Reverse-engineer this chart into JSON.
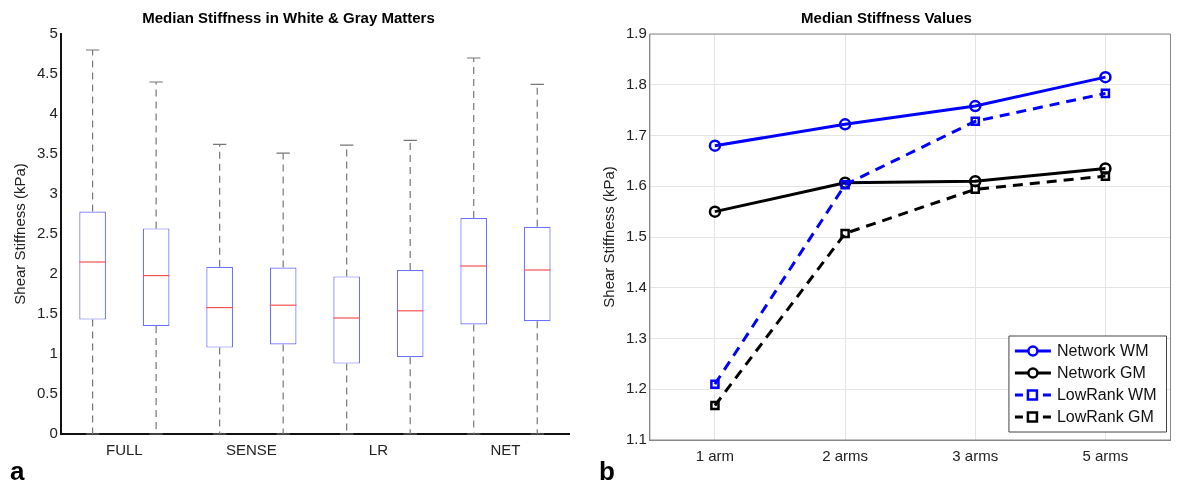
{
  "chart_data": [
    {
      "type": "box",
      "title": "Median Stiffness in White & Gray Matters",
      "ylabel": "Shear Stiffness (kPa)",
      "categories": [
        "FULL",
        "SENSE",
        "LR",
        "NET"
      ],
      "ylim": [
        0,
        5
      ],
      "yticks": [
        0,
        0.5,
        1,
        1.5,
        2,
        2.5,
        3,
        3.5,
        4,
        4.5,
        5
      ],
      "grid": false,
      "legend": false,
      "annotations": [
        "a"
      ],
      "series": [
        {
          "color": "#7070ff",
          "boxes": [
            {
              "low": 0,
              "q1": 1.43,
              "median": 2.15,
              "q3": 2.78,
              "high": 4.8
            },
            {
              "low": 0,
              "q1": 1.08,
              "median": 1.58,
              "q3": 2.09,
              "high": 3.62
            },
            {
              "low": 0,
              "q1": 0.88,
              "median": 1.45,
              "q3": 1.97,
              "high": 3.61
            },
            {
              "low": 0,
              "q1": 1.37,
              "median": 2.1,
              "q3": 2.7,
              "high": 4.7
            }
          ]
        },
        {
          "color": "#7070ff",
          "boxes": [
            {
              "low": 0,
              "q1": 1.35,
              "median": 1.98,
              "q3": 2.57,
              "high": 4.4
            },
            {
              "low": 0,
              "q1": 1.12,
              "median": 1.61,
              "q3": 2.08,
              "high": 3.51
            },
            {
              "low": 0,
              "q1": 0.96,
              "median": 1.54,
              "q3": 2.05,
              "high": 3.67
            },
            {
              "low": 0,
              "q1": 1.41,
              "median": 2.05,
              "q3": 2.59,
              "high": 4.37
            }
          ]
        }
      ]
    },
    {
      "type": "line",
      "title": "Median Stiffness Values",
      "ylabel": "Shear Stiffness (kPa)",
      "categories": [
        "1 arm",
        "2 arms",
        "3 arms",
        "5 arms"
      ],
      "ylim": [
        1.1,
        1.9
      ],
      "yticks": [
        1.1,
        1.2,
        1.3,
        1.4,
        1.5,
        1.6,
        1.7,
        1.8,
        1.9
      ],
      "grid": true,
      "legend": "bottom right",
      "annotations": [
        "b"
      ],
      "series": [
        {
          "name": "Network WM",
          "color": "#0000ff",
          "marker": "circle",
          "line_style": "solid",
          "values": [
            1.68,
            1.722,
            1.758,
            1.815
          ]
        },
        {
          "name": "Network GM",
          "color": "#000000",
          "marker": "circle",
          "line_style": "solid",
          "values": [
            1.55,
            1.607,
            1.61,
            1.635
          ]
        },
        {
          "name": "LowRank WM",
          "color": "#0000ff",
          "marker": "square",
          "line_style": "dashed",
          "values": [
            1.21,
            1.603,
            1.728,
            1.783
          ]
        },
        {
          "name": "LowRank GM",
          "color": "#000000",
          "marker": "square",
          "line_style": "dashed",
          "values": [
            1.168,
            1.507,
            1.594,
            1.62
          ]
        }
      ]
    }
  ]
}
